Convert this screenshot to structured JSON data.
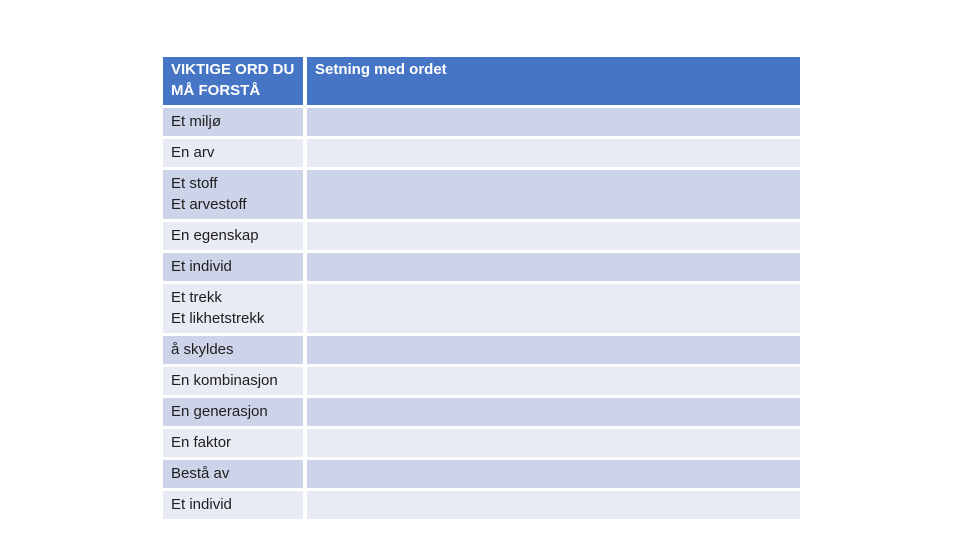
{
  "slide": {
    "background": "#ffffff"
  },
  "table": {
    "colors": {
      "header_bg": "#4675C6",
      "header_text": "#ffffff",
      "band_dark": "#CDD3E8",
      "band_light": "#E9EBF4",
      "body_text": "#1e1e1e",
      "slide_bg": "#ffffff"
    },
    "header": {
      "col1": "VIKTIGE ORD DU\nMÅ FORSTÅ",
      "col2": "Setning med ordet"
    },
    "rows": [
      {
        "word": "Et miljø",
        "sentence": ""
      },
      {
        "word": "En arv",
        "sentence": ""
      },
      {
        "word": "Et stoff\nEt arvestoff",
        "sentence": ""
      },
      {
        "word": "En egenskap",
        "sentence": ""
      },
      {
        "word": "Et individ",
        "sentence": ""
      },
      {
        "word": "Et trekk\nEt likhetstrekk",
        "sentence": ""
      },
      {
        "word": "å skyldes",
        "sentence": ""
      },
      {
        "word": "En kombinasjon",
        "sentence": ""
      },
      {
        "word": "En generasjon",
        "sentence": ""
      },
      {
        "word": "En faktor",
        "sentence": ""
      },
      {
        "word": "Bestå av",
        "sentence": ""
      },
      {
        "word": "Et individ",
        "sentence": ""
      }
    ]
  }
}
